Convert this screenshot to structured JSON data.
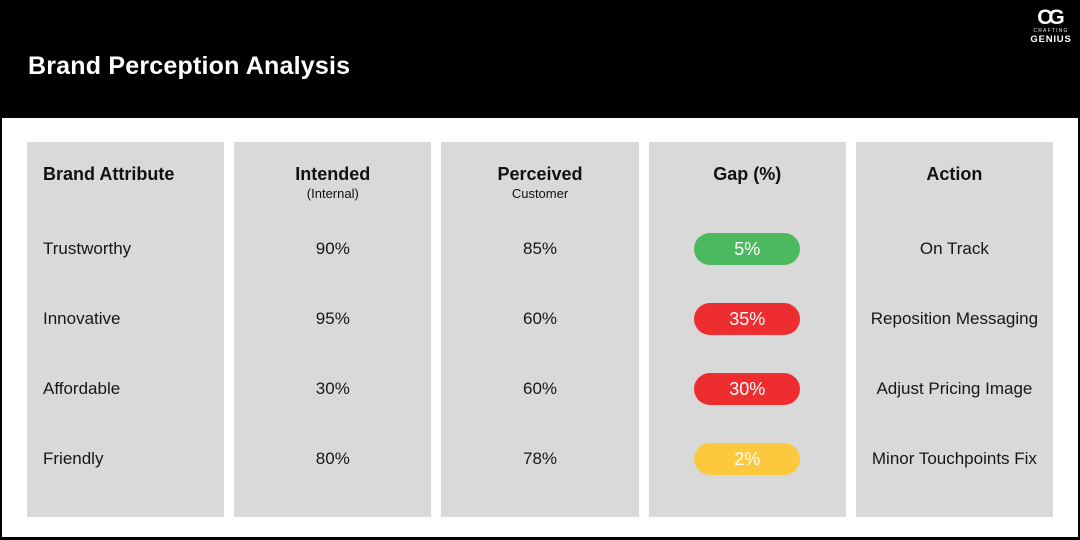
{
  "header": {
    "title": "Brand Perception Analysis",
    "logo": {
      "monogram": "CG",
      "tagline_top": "CRAFTING",
      "tagline_bottom": "GENIUS"
    }
  },
  "colors": {
    "header_bg": "#000000",
    "card_bg": "#d9d9d9",
    "pill_green": "#4cb95f",
    "pill_red": "#ee2d31",
    "pill_yellow": "#fcc93e",
    "text": "#161616"
  },
  "table": {
    "columns": [
      {
        "header": "Brand Attribute",
        "subheader": ""
      },
      {
        "header": "Intended",
        "subheader": "(Internal)"
      },
      {
        "header": "Perceived",
        "subheader": "Customer"
      },
      {
        "header": "Gap (%)",
        "subheader": ""
      },
      {
        "header": "Action",
        "subheader": ""
      }
    ],
    "rows": [
      {
        "attribute": "Trustworthy",
        "intended": "90%",
        "perceived": "85%",
        "gap": "5%",
        "gap_color": "#4cb95f",
        "action": "On Track"
      },
      {
        "attribute": "Innovative",
        "intended": "95%",
        "perceived": "60%",
        "gap": "35%",
        "gap_color": "#ee2d31",
        "action": "Reposition Messaging"
      },
      {
        "attribute": "Affordable",
        "intended": "30%",
        "perceived": "60%",
        "gap": "30%",
        "gap_color": "#ee2d31",
        "action": "Adjust Pricing Image"
      },
      {
        "attribute": "Friendly",
        "intended": "80%",
        "perceived": "78%",
        "gap": "2%",
        "gap_color": "#fcc93e",
        "action": "Minor Touchpoints Fix"
      }
    ]
  },
  "chart_data": {
    "type": "table",
    "title": "Brand Perception Analysis",
    "columns": [
      "Brand Attribute",
      "Intended (Internal)",
      "Perceived Customer",
      "Gap (%)",
      "Action"
    ],
    "rows": [
      [
        "Trustworthy",
        "90%",
        "85%",
        "5%",
        "On Track"
      ],
      [
        "Innovative",
        "95%",
        "60%",
        "35%",
        "Reposition Messaging"
      ],
      [
        "Affordable",
        "30%",
        "60%",
        "30%",
        "Adjust Pricing Image"
      ],
      [
        "Friendly",
        "80%",
        "78%",
        "2%",
        "Minor Touchpoints Fix"
      ]
    ],
    "gap_status_colors": [
      "green",
      "red",
      "red",
      "yellow"
    ]
  }
}
